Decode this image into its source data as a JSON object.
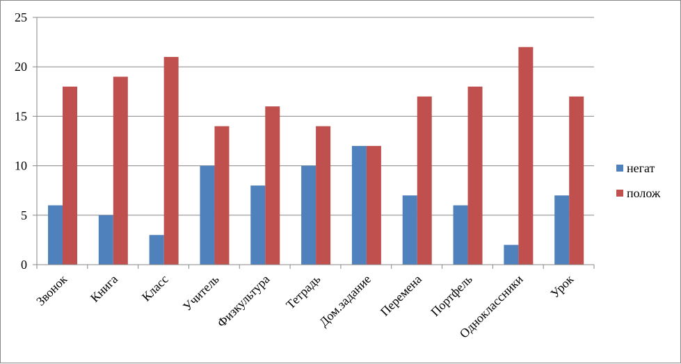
{
  "chart_data": {
    "type": "bar",
    "title": "",
    "xlabel": "",
    "ylabel": "",
    "categories": [
      "Звонок",
      "Книга",
      "Класс",
      "Учитель",
      "Физкультура",
      "Тетрадь",
      "Дом.задание",
      "Перемена",
      "Портфель",
      "Одноклассники",
      "Урок"
    ],
    "series": [
      {
        "name": "негат",
        "color": "#4F81BD",
        "values": [
          6,
          5,
          3,
          10,
          8,
          10,
          12,
          7,
          6,
          2,
          7
        ]
      },
      {
        "name": "полож",
        "color": "#C0504D",
        "values": [
          18,
          19,
          21,
          14,
          16,
          14,
          12,
          17,
          18,
          22,
          17
        ]
      }
    ],
    "ylim": [
      0,
      25
    ],
    "yticks": [
      0,
      5,
      10,
      15,
      20,
      25
    ],
    "grid": true,
    "legend_position": "right"
  }
}
